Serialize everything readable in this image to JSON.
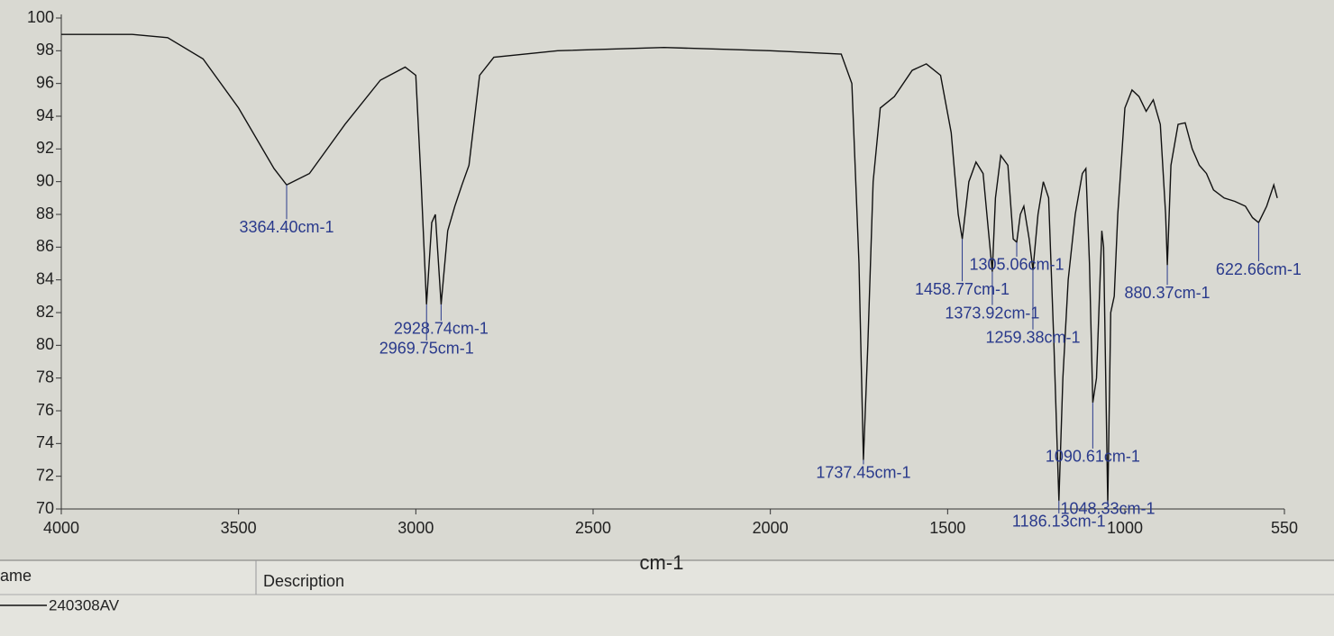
{
  "chart_data": {
    "type": "line",
    "xlabel": "cm-1",
    "xlim": [
      4000,
      550
    ],
    "ylim": [
      70,
      100
    ],
    "xticks": [
      4000,
      3500,
      3000,
      2500,
      2000,
      1500,
      1000,
      550
    ],
    "yticks": [
      70,
      72,
      74,
      76,
      78,
      80,
      82,
      84,
      86,
      88,
      90,
      92,
      94,
      96,
      98,
      100
    ],
    "legend_columns": [
      "ame",
      "Description"
    ],
    "series": [
      {
        "name": "240308AV",
        "color": "#111111",
        "x": [
          4000,
          3800,
          3700,
          3600,
          3500,
          3400,
          3364.4,
          3300,
          3200,
          3100,
          3030,
          3000,
          2985,
          2969.75,
          2955,
          2945,
          2928.74,
          2910,
          2890,
          2870,
          2850,
          2820,
          2780,
          2600,
          2300,
          2000,
          1800,
          1770,
          1750,
          1737.45,
          1725,
          1710,
          1690,
          1650,
          1600,
          1560,
          1520,
          1490,
          1470,
          1458.77,
          1440,
          1420,
          1400,
          1385,
          1373.92,
          1365,
          1350,
          1330,
          1315,
          1305.06,
          1295,
          1285,
          1270,
          1259.38,
          1245,
          1230,
          1215,
          1200,
          1186.13,
          1175,
          1160,
          1140,
          1120,
          1110,
          1100,
          1090.61,
          1080,
          1065,
          1060,
          1048.33,
          1040,
          1030,
          1020,
          1000,
          980,
          960,
          940,
          920,
          900,
          885,
          880.37,
          870,
          850,
          830,
          810,
          790,
          770,
          750,
          720,
          690,
          660,
          640,
          622.66,
          600,
          580,
          570
        ],
        "values": [
          99.0,
          99.0,
          98.8,
          97.5,
          94.5,
          90.8,
          89.8,
          90.5,
          93.5,
          96.2,
          97.0,
          96.5,
          90.0,
          82.5,
          87.5,
          88.0,
          82.5,
          87.0,
          88.5,
          89.8,
          91.0,
          96.5,
          97.6,
          98.0,
          98.2,
          98.0,
          97.8,
          96.0,
          85.0,
          73.0,
          80.0,
          90.0,
          94.5,
          95.2,
          96.8,
          97.2,
          96.5,
          93.0,
          88.0,
          86.5,
          90.0,
          91.2,
          90.5,
          87.0,
          84.5,
          89.0,
          91.6,
          91.0,
          86.5,
          86.3,
          88.0,
          88.5,
          86.5,
          84.6,
          88.0,
          90.0,
          89.0,
          80.0,
          70.5,
          78.0,
          84.0,
          88.0,
          90.5,
          90.8,
          85.0,
          76.5,
          78.0,
          87.0,
          86.0,
          70.3,
          82.0,
          83.0,
          88.0,
          94.5,
          95.6,
          95.2,
          94.3,
          95.0,
          93.5,
          88.0,
          84.9,
          91.0,
          93.5,
          93.6,
          92.0,
          91.0,
          90.5,
          89.5,
          89.0,
          88.8,
          88.5,
          87.8,
          87.5,
          88.5,
          89.8,
          89.0
        ]
      }
    ],
    "annotations": [
      {
        "label": "3364.40cm-1",
        "x": 3364.4,
        "y": 89.8
      },
      {
        "label": "2928.74cm-1",
        "x": 2928.74,
        "y": 82.5
      },
      {
        "label": "2969.75cm-1",
        "x": 2969.75,
        "y": 82.5
      },
      {
        "label": "1737.45cm-1",
        "x": 1737.45,
        "y": 73.0
      },
      {
        "label": "1458.77cm-1",
        "x": 1458.77,
        "y": 86.5
      },
      {
        "label": "1305.06cm-1",
        "x": 1305.06,
        "y": 86.3
      },
      {
        "label": "1373.92cm-1",
        "x": 1373.92,
        "y": 84.5
      },
      {
        "label": "1259.38cm-1",
        "x": 1259.38,
        "y": 84.6
      },
      {
        "label": "1090.61cm-1",
        "x": 1090.61,
        "y": 76.5
      },
      {
        "label": "1048.33cm-1",
        "x": 1048.33,
        "y": 70.3
      },
      {
        "label": "1186.13cm-1",
        "x": 1186.13,
        "y": 70.5
      },
      {
        "label": "880.37cm-1",
        "x": 880.37,
        "y": 84.9
      },
      {
        "label": "622.66cm-1",
        "x": 622.66,
        "y": 87.5
      }
    ]
  }
}
